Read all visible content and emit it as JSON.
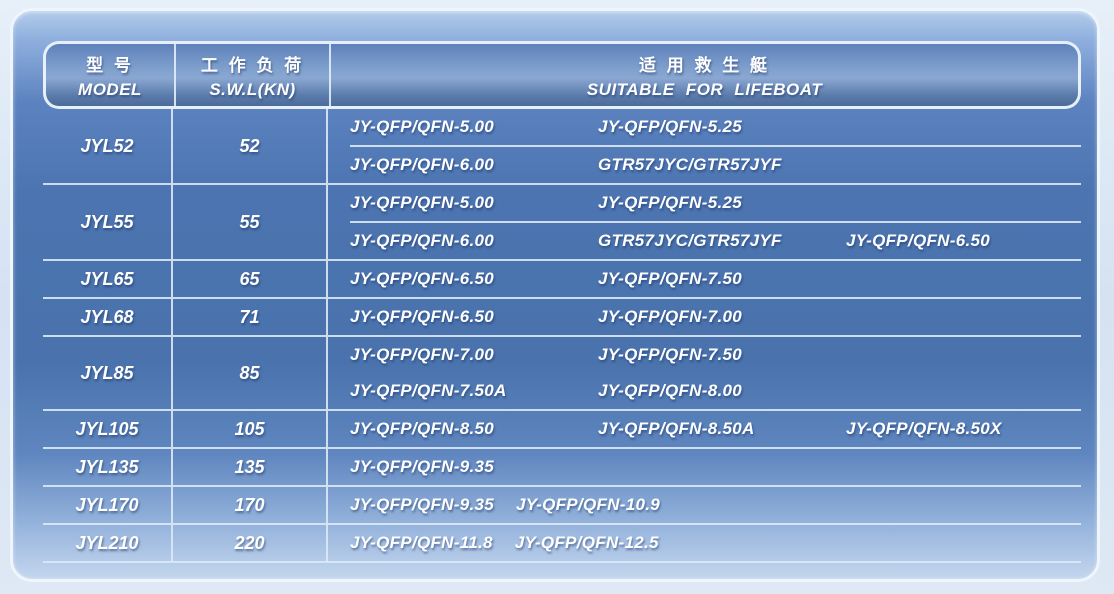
{
  "colors": {
    "page_background": "#dfe9f5",
    "card_top": "#b3cceb",
    "card_middle": "#4a73ad",
    "card_bottom": "#c4d6ee",
    "card_border": "#eef5fc",
    "header_gloss_top": "#5e81ba",
    "header_gloss_mid": "#8aa7d2",
    "header_gloss_bottom": "#4c6b9b",
    "divider": "#dbe8f6",
    "text": "#ffffff"
  },
  "table": {
    "header": {
      "col1_cn": "型 号",
      "col1_en": "MODEL",
      "col2_cn": "工 作 负 荷",
      "col2_en": "S.W.L(KN)",
      "col3_cn": "适 用 救 生 艇",
      "col3_en": "SUITABLE FOR LIFEBOAT"
    },
    "rows": [
      {
        "model": "JYL52",
        "swl": "52",
        "sub_divider": true,
        "spacing": "columns",
        "boats": [
          [
            "JY-QFP/QFN-5.00",
            "JY-QFP/QFN-5.25"
          ],
          [
            "JY-QFP/QFN-6.00",
            "GTR57JYC/GTR57JYF"
          ]
        ]
      },
      {
        "model": "JYL55",
        "swl": "55",
        "sub_divider": true,
        "spacing": "columns",
        "boats": [
          [
            "JY-QFP/QFN-5.00",
            "JY-QFP/QFN-5.25"
          ],
          [
            "JY-QFP/QFN-6.00",
            "GTR57JYC/GTR57JYF",
            "JY-QFP/QFN-6.50"
          ]
        ]
      },
      {
        "model": "JYL65",
        "swl": "65",
        "sub_divider": false,
        "spacing": "columns",
        "boats": [
          [
            "JY-QFP/QFN-6.50",
            "JY-QFP/QFN-7.50"
          ]
        ]
      },
      {
        "model": "JYL68",
        "swl": "71",
        "sub_divider": false,
        "spacing": "columns",
        "boats": [
          [
            "JY-QFP/QFN-6.50",
            "JY-QFP/QFN-7.00"
          ]
        ]
      },
      {
        "model": "JYL85",
        "swl": "85",
        "sub_divider": false,
        "spacing": "columns",
        "boats": [
          [
            "JY-QFP/QFN-7.00",
            "JY-QFP/QFN-7.50"
          ],
          [
            "JY-QFP/QFN-7.50A",
            "JY-QFP/QFN-8.00"
          ]
        ]
      },
      {
        "model": "JYL105",
        "swl": "105",
        "sub_divider": false,
        "spacing": "columns",
        "boats": [
          [
            "JY-QFP/QFN-8.50",
            "JY-QFP/QFN-8.50A",
            "JY-QFP/QFN-8.50X"
          ]
        ]
      },
      {
        "model": "JYL135",
        "swl": "135",
        "sub_divider": false,
        "spacing": "columns",
        "boats": [
          [
            "JY-QFP/QFN-9.35"
          ]
        ]
      },
      {
        "model": "JYL170",
        "swl": "170",
        "sub_divider": false,
        "spacing": "tight",
        "boats": [
          [
            "JY-QFP/QFN-9.35",
            "JY-QFP/QFN-10.9"
          ]
        ]
      },
      {
        "model": "JYL210",
        "swl": "220",
        "sub_divider": false,
        "spacing": "tight",
        "boats": [
          [
            "JY-QFP/QFN-11.8",
            "JY-QFP/QFN-12.5"
          ]
        ]
      }
    ]
  }
}
